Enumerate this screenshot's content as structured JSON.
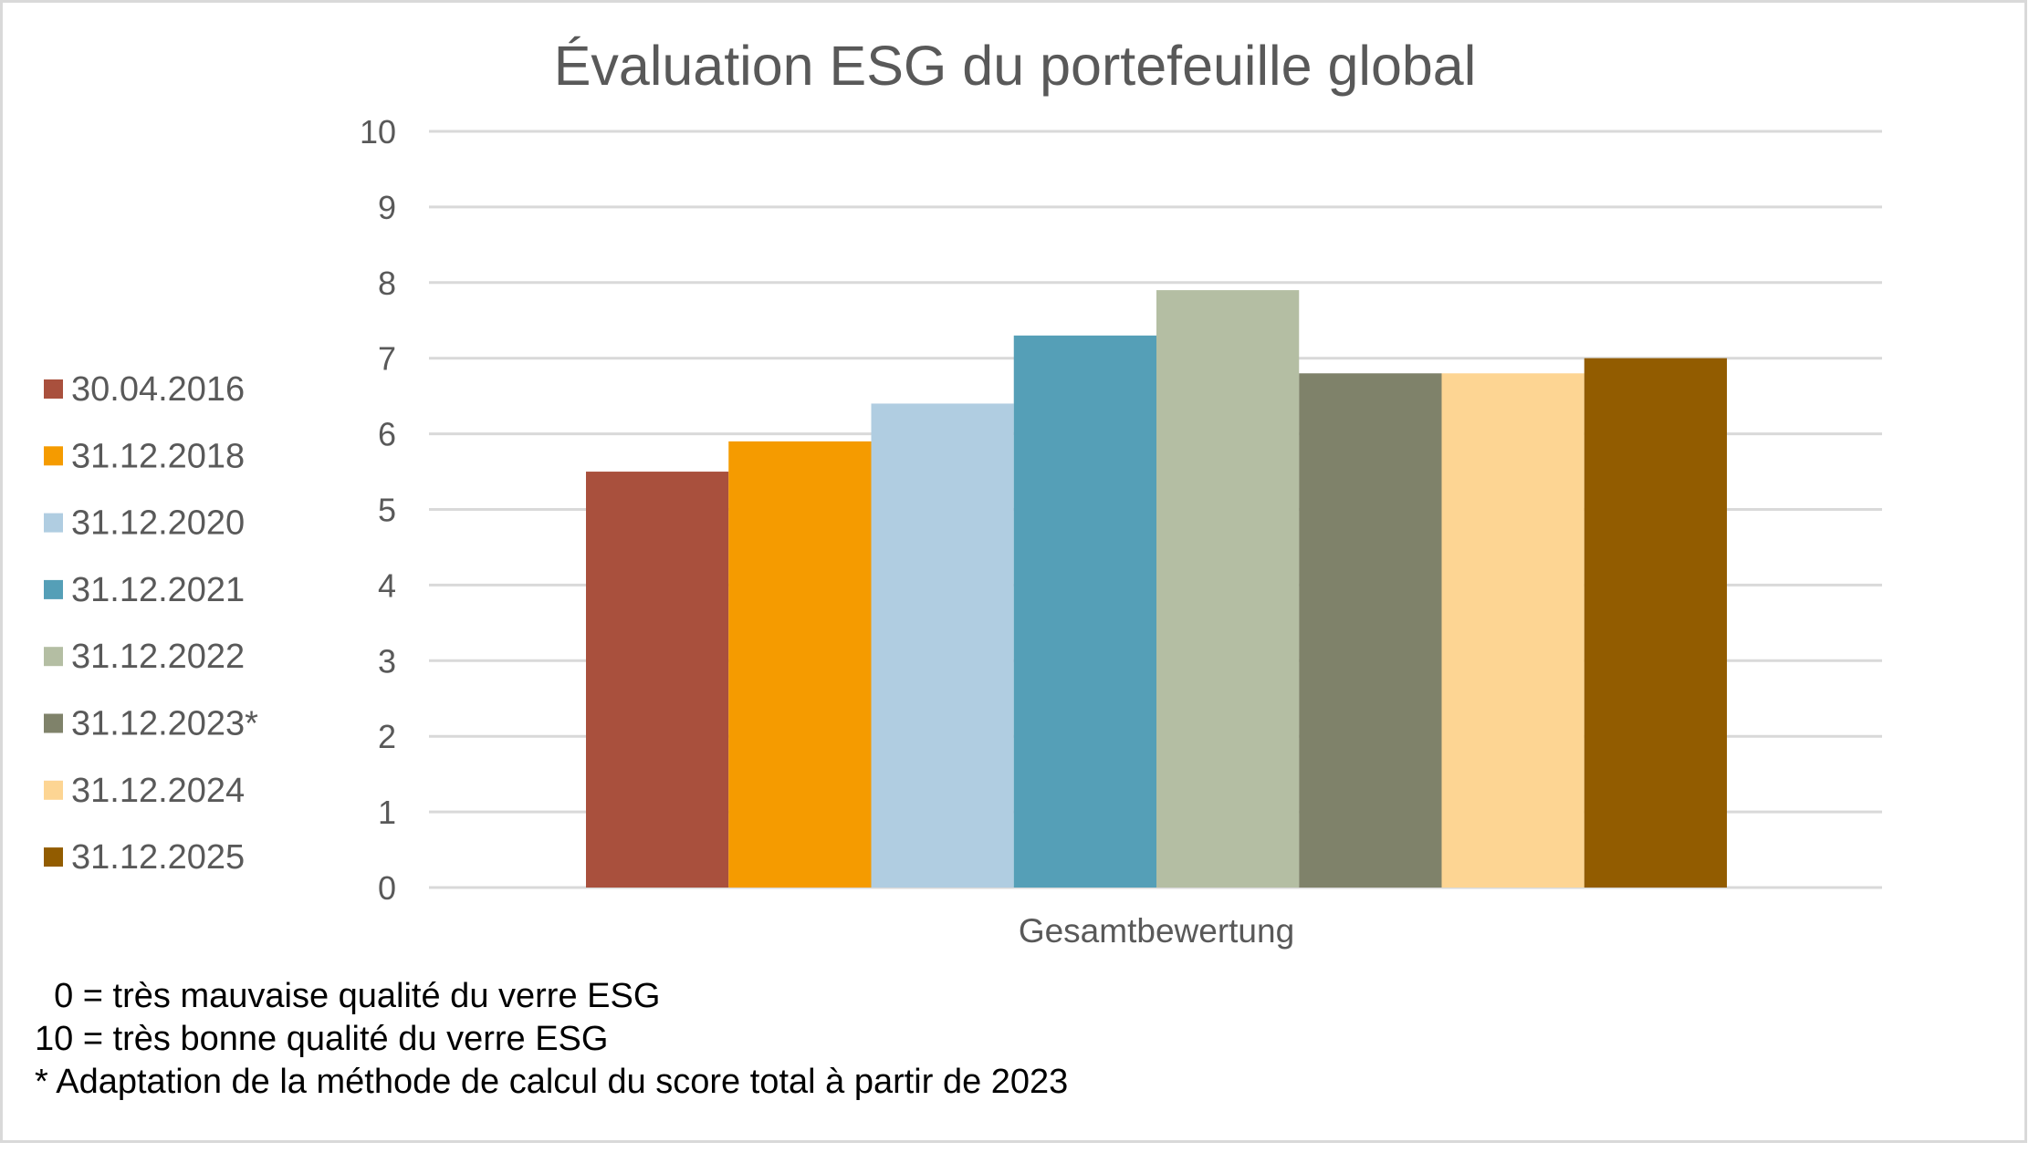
{
  "chart_data": {
    "type": "bar",
    "title": "Évaluation ESG du portefeuille global",
    "categories": [
      "Gesamtbewertung"
    ],
    "series": [
      {
        "name": "30.04.2016",
        "values": [
          5.5
        ],
        "color": "#A9503D"
      },
      {
        "name": "31.12.2018",
        "values": [
          5.9
        ],
        "color": "#F59B00"
      },
      {
        "name": "31.12.2020",
        "values": [
          6.4
        ],
        "color": "#B0CDE1"
      },
      {
        "name": "31.12.2021",
        "values": [
          7.3
        ],
        "color": "#559FB7"
      },
      {
        "name": "31.12.2022",
        "values": [
          7.9
        ],
        "color": "#B4BEA3"
      },
      {
        "name": "31.12.2023*",
        "values": [
          6.8
        ],
        "color": "#7F826A"
      },
      {
        "name": "31.12.2024",
        "values": [
          6.8
        ],
        "color": "#FDD593"
      },
      {
        "name": "31.12.2025",
        "values": [
          7.0
        ],
        "color": "#925C00"
      }
    ],
    "xlabel": "",
    "ylabel": "",
    "ylim": [
      0,
      10
    ],
    "yticks": [
      "0",
      "1",
      "2",
      "3",
      "4",
      "5",
      "6",
      "7",
      "8",
      "9",
      "10"
    ],
    "grid": true,
    "legend": "left"
  },
  "notes": [
    "  0 = très mauvaise qualité du verre ESG",
    "10 = très bonne qualité du verre ESG",
    "* Adaptation de la méthode de calcul du score total à partir de 2023"
  ]
}
